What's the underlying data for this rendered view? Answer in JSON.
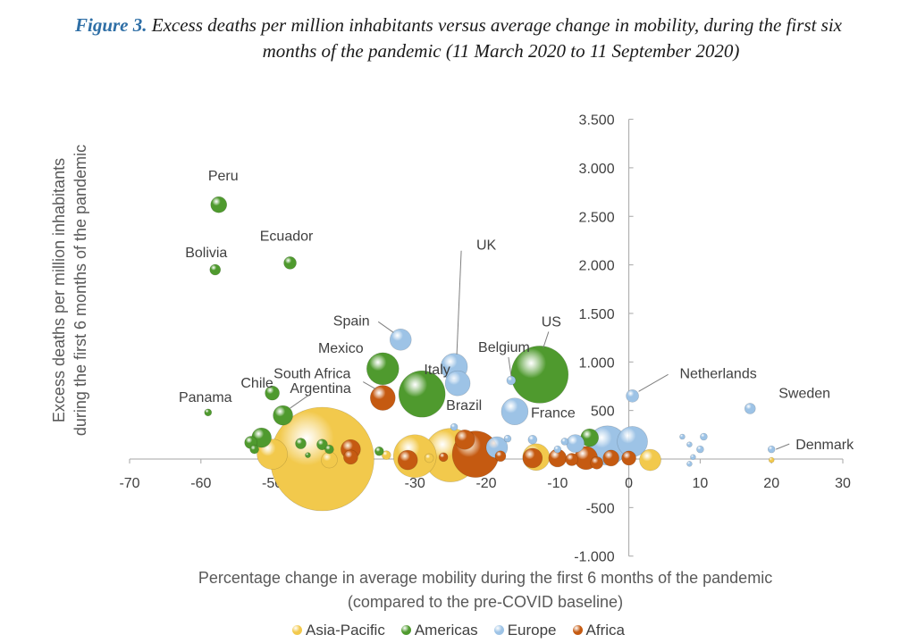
{
  "figure": {
    "number": "Figure 3.",
    "title_line1": "Excess deaths per million inhabitants versus average change in mobility, during the first six",
    "title_line2": "months of the pandemic (11 March 2020 to 11 September 2020)"
  },
  "chart_data": {
    "type": "scatter",
    "subtype": "bubble",
    "xlabel_line1": "Percentage change in average mobility during the first 6 months of the pandemic",
    "xlabel_line2": "(compared to the pre-COVID baseline)",
    "ylabel_line1": "Excess deaths per million inhabitants",
    "ylabel_line2": "during the first 6 months of the pandemic",
    "xlim": [
      -70,
      30
    ],
    "ylim": [
      -1000,
      3500
    ],
    "x_ticks": [
      -70,
      -60,
      -50,
      -40,
      -30,
      -20,
      -10,
      0,
      10,
      20,
      30
    ],
    "x_tick_labels": [
      "-70",
      "-60",
      "-50",
      "-40",
      "-30",
      "-20",
      "-10",
      "0",
      "10",
      "20",
      "30"
    ],
    "y_ticks": [
      -1000,
      -500,
      500,
      1000,
      1500,
      2000,
      2500,
      3000,
      3500
    ],
    "y_tick_labels": [
      "-1.000",
      "-500",
      "500",
      "1.000",
      "1.500",
      "2.000",
      "2.500",
      "3.000",
      "3.500"
    ],
    "grid": false,
    "legend_position": "bottom",
    "colors": {
      "Asia-Pacific": "#f2c94c",
      "Americas": "#4f9a2e",
      "Europe": "#9dc3e6",
      "Africa": "#c55a11"
    },
    "series": [
      {
        "name": "Asia-Pacific",
        "points": [
          {
            "x": -43,
            "y": 0,
            "size": 58
          },
          {
            "x": -25,
            "y": 40,
            "size": 30
          },
          {
            "x": -30,
            "y": 30,
            "size": 24
          },
          {
            "x": -50,
            "y": 50,
            "size": 17
          },
          {
            "x": -13,
            "y": 20,
            "size": 15
          },
          {
            "x": 3,
            "y": -10,
            "size": 12
          },
          {
            "x": -42,
            "y": -10,
            "size": 9
          },
          {
            "x": -34,
            "y": 40,
            "size": 5
          },
          {
            "x": -28,
            "y": 10,
            "size": 5
          },
          {
            "x": 20,
            "y": -10,
            "size": 3
          }
        ]
      },
      {
        "name": "Americas",
        "points": [
          {
            "x": -57.5,
            "y": 2620,
            "label": "Peru",
            "size": 9
          },
          {
            "x": -47.5,
            "y": 2020,
            "label": "Ecuador",
            "size": 7
          },
          {
            "x": -58,
            "y": 1950,
            "label": "Bolivia",
            "size": 6
          },
          {
            "x": -59,
            "y": 480,
            "label": "Panama",
            "size": 4
          },
          {
            "x": -50,
            "y": 680,
            "label": "Chile",
            "size": 8
          },
          {
            "x": -48.5,
            "y": 450,
            "label": "Argentina",
            "size": 11
          },
          {
            "x": -34.5,
            "y": 930,
            "label": "Mexico",
            "size": 18
          },
          {
            "x": -29,
            "y": 670,
            "label": "Brazil",
            "size": 26
          },
          {
            "x": -12.5,
            "y": 870,
            "label": "US",
            "size": 32
          },
          {
            "x": -51.5,
            "y": 220,
            "size": 11
          },
          {
            "x": -53,
            "y": 170,
            "size": 7
          },
          {
            "x": -46,
            "y": 160,
            "size": 6
          },
          {
            "x": -43,
            "y": 150,
            "size": 6
          },
          {
            "x": -5.5,
            "y": 220,
            "size": 10
          },
          {
            "x": -52.5,
            "y": 100,
            "size": 5
          },
          {
            "x": -42,
            "y": 100,
            "size": 5
          },
          {
            "x": -35,
            "y": 80,
            "size": 5
          },
          {
            "x": -45,
            "y": 40,
            "size": 3
          }
        ]
      },
      {
        "name": "Europe",
        "points": [
          {
            "x": -32,
            "y": 1230,
            "label": "Spain",
            "size": 12
          },
          {
            "x": -24.5,
            "y": 950,
            "label": "UK",
            "size": 15
          },
          {
            "x": -24,
            "y": 780,
            "label": "Italy",
            "size": 14
          },
          {
            "x": -16.5,
            "y": 810,
            "label": "Belgium",
            "size": 5
          },
          {
            "x": -16,
            "y": 490,
            "label": "France",
            "size": 15
          },
          {
            "x": 0.5,
            "y": 650,
            "label": "Netherlands",
            "size": 7
          },
          {
            "x": 17,
            "y": 520,
            "label": "Sweden",
            "size": 6
          },
          {
            "x": 20,
            "y": 100,
            "label": "Denmark",
            "size": 4
          },
          {
            "x": -3,
            "y": 140,
            "size": 22
          },
          {
            "x": -18.5,
            "y": 120,
            "size": 12
          },
          {
            "x": 0.5,
            "y": 180,
            "size": 17
          },
          {
            "x": -7.5,
            "y": 160,
            "size": 10
          },
          {
            "x": -24.5,
            "y": 330,
            "size": 4
          },
          {
            "x": -17,
            "y": 210,
            "size": 4
          },
          {
            "x": -13.5,
            "y": 200,
            "size": 5
          },
          {
            "x": -9,
            "y": 180,
            "size": 4
          },
          {
            "x": 10.5,
            "y": 230,
            "size": 4
          },
          {
            "x": 10,
            "y": 100,
            "size": 4
          },
          {
            "x": 8.5,
            "y": 150,
            "size": 3
          },
          {
            "x": 7.5,
            "y": 230,
            "size": 3
          },
          {
            "x": 9,
            "y": 20,
            "size": 3
          },
          {
            "x": 8.5,
            "y": -50,
            "size": 3
          },
          {
            "x": -10,
            "y": 100,
            "size": 4
          }
        ]
      },
      {
        "name": "Africa",
        "points": [
          {
            "x": -34.5,
            "y": 630,
            "label": "South Africa",
            "size": 14
          },
          {
            "x": -21.5,
            "y": 50,
            "size": 26
          },
          {
            "x": -23,
            "y": 200,
            "size": 11
          },
          {
            "x": -39,
            "y": 100,
            "size": 11
          },
          {
            "x": -31,
            "y": -10,
            "size": 11
          },
          {
            "x": -13.5,
            "y": 10,
            "size": 11
          },
          {
            "x": -6,
            "y": 10,
            "size": 13
          },
          {
            "x": -10,
            "y": 10,
            "size": 10
          },
          {
            "x": -2.5,
            "y": 10,
            "size": 9
          },
          {
            "x": 0,
            "y": 10,
            "size": 8
          },
          {
            "x": -18,
            "y": 30,
            "size": 6
          },
          {
            "x": -39,
            "y": 20,
            "size": 8
          },
          {
            "x": -8,
            "y": -5,
            "size": 7
          },
          {
            "x": -26,
            "y": 20,
            "size": 5
          },
          {
            "x": -4.5,
            "y": -40,
            "size": 7
          }
        ]
      }
    ]
  },
  "legend": [
    {
      "label": "Asia-Pacific",
      "color": "#f2c94c"
    },
    {
      "label": "Americas",
      "color": "#4f9a2e"
    },
    {
      "label": "Europe",
      "color": "#9dc3e6"
    },
    {
      "label": "Africa",
      "color": "#c55a11"
    }
  ]
}
